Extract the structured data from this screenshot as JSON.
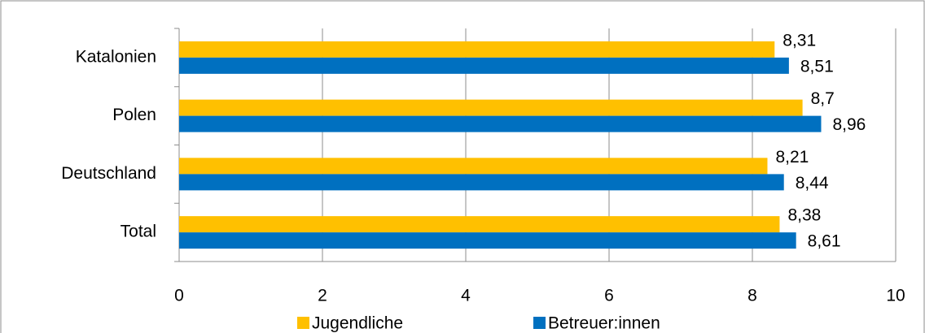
{
  "chart_data": {
    "type": "bar",
    "orientation": "horizontal",
    "categories": [
      "Katalonien",
      "Polen",
      "Deutschland",
      "Total"
    ],
    "series": [
      {
        "name": "Jugendliche",
        "color": "#ffc000",
        "values": [
          8.31,
          8.7,
          8.21,
          8.38
        ],
        "value_labels": [
          "8,31",
          "8,7",
          "8,21",
          "8,38"
        ]
      },
      {
        "name": "Betreuer:innen",
        "color": "#0070c0",
        "values": [
          8.51,
          8.96,
          8.44,
          8.61
        ],
        "value_labels": [
          "8,51",
          "8,96",
          "8,44",
          "8,61"
        ]
      }
    ],
    "xlim": [
      0,
      10
    ],
    "xticks": [
      0,
      2,
      4,
      6,
      8,
      10
    ],
    "grid": true,
    "legend": "bottom"
  }
}
